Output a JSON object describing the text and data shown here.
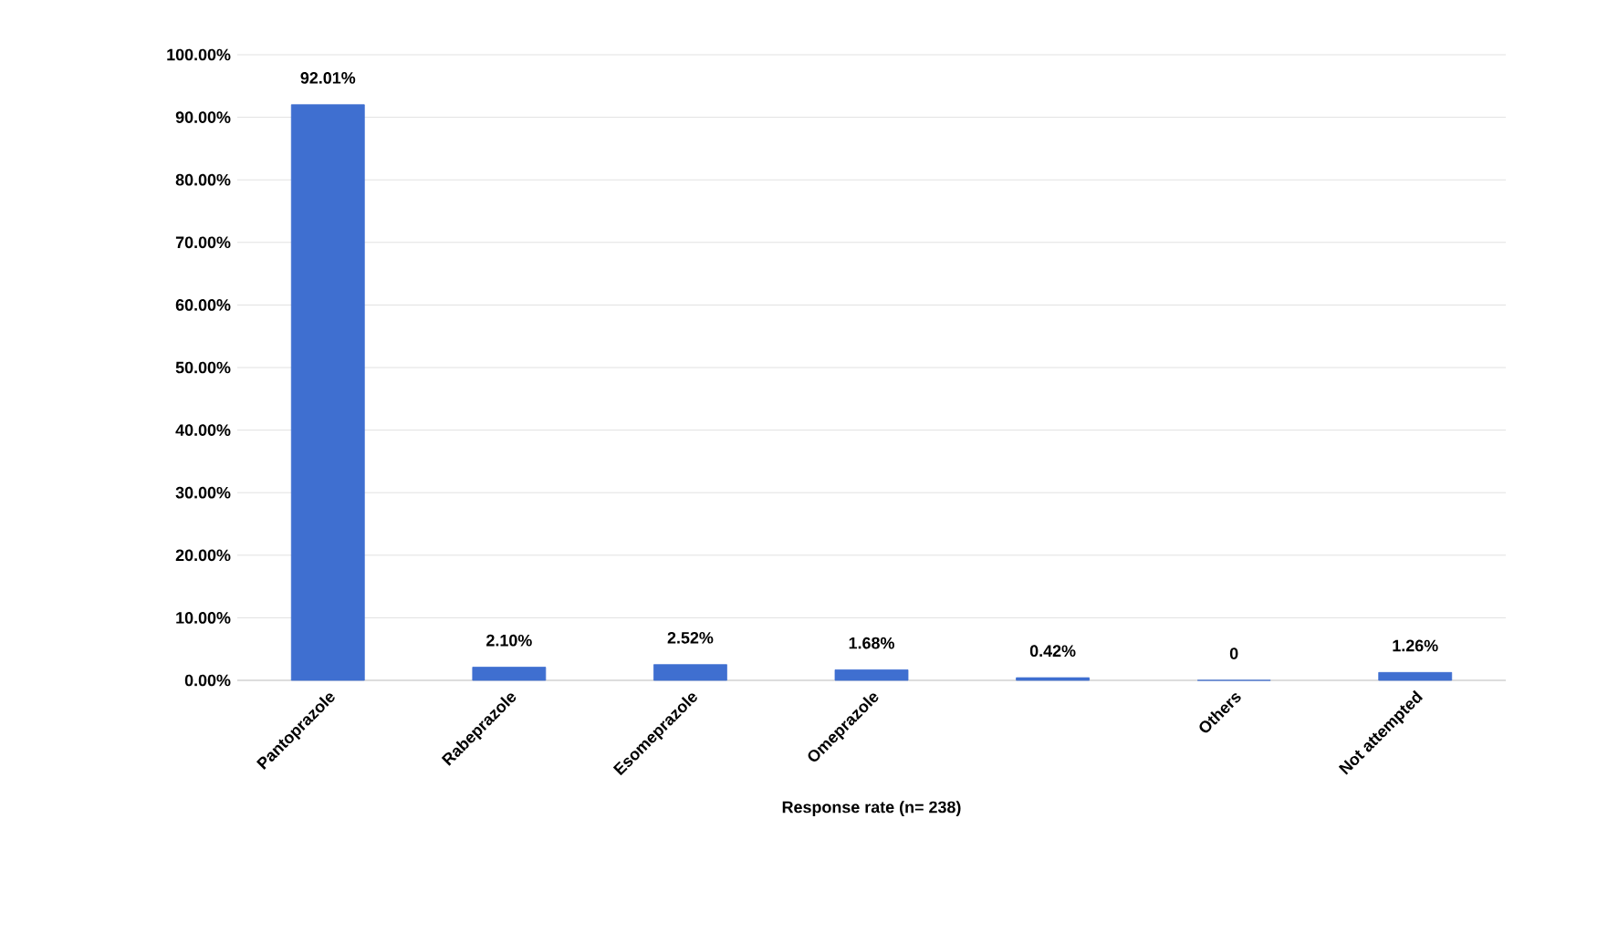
{
  "chart_data": {
    "type": "bar",
    "xlabel": "Response rate (n= 238)",
    "categories": [
      "Pantoprazole",
      "Rabeprazole",
      "Esomeprazole",
      "Omeprazole",
      null,
      "Others",
      "Not attempted"
    ],
    "values": [
      92.01,
      2.1,
      2.52,
      1.68,
      0.42,
      0,
      1.26
    ],
    "value_labels": [
      "92.01%",
      "2.10%",
      "2.52%",
      "1.68%",
      "0.42%",
      "0",
      "1.26%"
    ],
    "color": "#3f6fd0",
    "ylim": [
      0,
      100
    ],
    "yticks": [
      {
        "value": 0,
        "label": "0.00%"
      },
      {
        "value": 10,
        "label": "10.00%"
      },
      {
        "value": 20,
        "label": "20.00%"
      },
      {
        "value": 30,
        "label": "30.00%"
      },
      {
        "value": 40,
        "label": "40.00%"
      },
      {
        "value": 50,
        "label": "50.00%"
      },
      {
        "value": 60,
        "label": "60.00%"
      },
      {
        "value": 70,
        "label": "70.00%"
      },
      {
        "value": 80,
        "label": "80.00%"
      },
      {
        "value": 90,
        "label": "90.00%"
      },
      {
        "value": 100,
        "label": "100.00%"
      }
    ],
    "grid": "y"
  }
}
